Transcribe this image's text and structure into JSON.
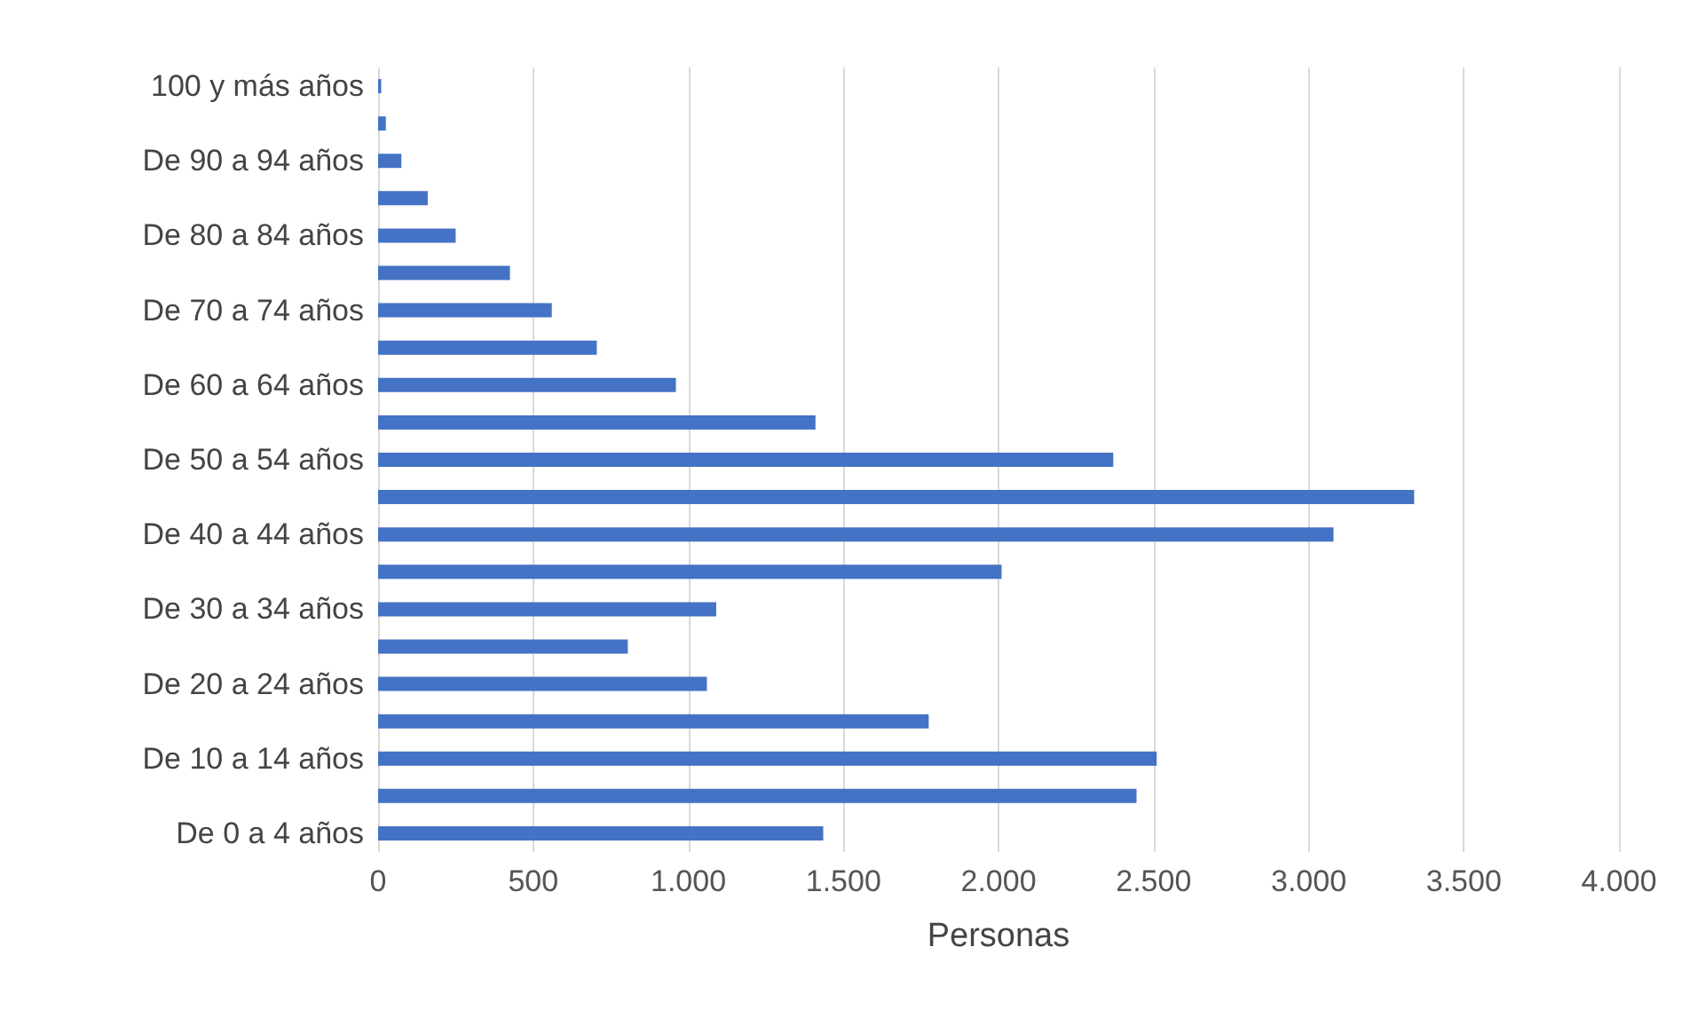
{
  "chart_data": {
    "type": "bar",
    "orientation": "horizontal",
    "xlabel": "Personas",
    "categories": [
      "100 y más años",
      null,
      "De 90 a 94 años",
      null,
      "De 80 a 84 años",
      null,
      "De 70 a 74 años",
      null,
      "De 60 a 64 años",
      null,
      "De 50 a 54 años",
      null,
      "De 40 a 44 años",
      null,
      "De 30 a 34 años",
      null,
      "De 20 a 24 años",
      null,
      "De 10 a 14 años",
      null,
      "De 0 a 4 años"
    ],
    "values": [
      10,
      25,
      75,
      160,
      250,
      425,
      560,
      705,
      960,
      1410,
      2370,
      3340,
      3080,
      2010,
      1090,
      805,
      1060,
      1775,
      2510,
      2445,
      1435
    ],
    "color": "#4472c4",
    "xlim": [
      0,
      4000
    ],
    "xticks": [
      0,
      500,
      {
        "value": 1000,
        "label": "1.000"
      },
      {
        "value": 1500,
        "label": "1.500"
      },
      {
        "value": 2000,
        "label": "2.000"
      },
      {
        "value": 2500,
        "label": "2.500"
      },
      {
        "value": 3000,
        "label": "3.000"
      },
      {
        "value": 3500,
        "label": "3.500"
      },
      {
        "value": 4000,
        "label": "4.000"
      }
    ],
    "grid": "x"
  }
}
